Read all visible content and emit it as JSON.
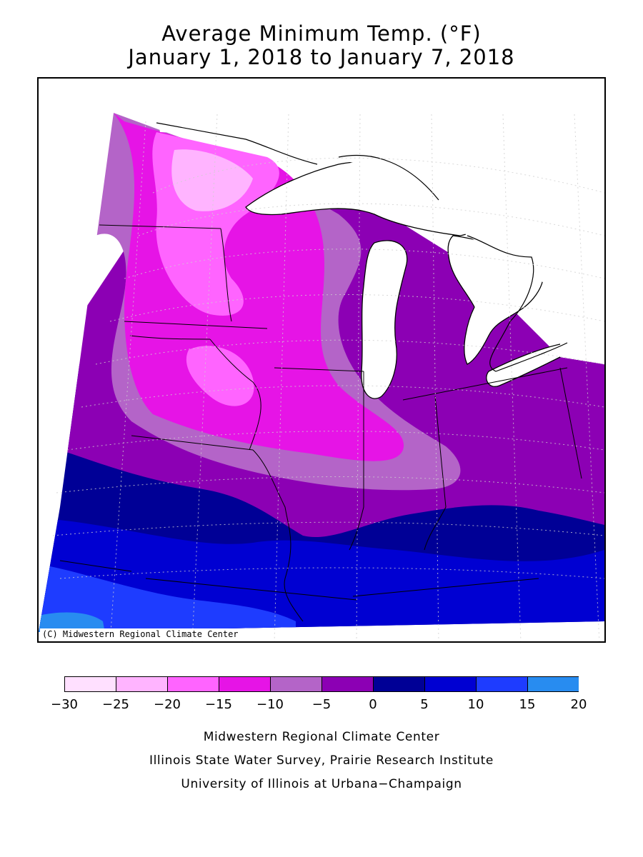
{
  "title": {
    "line1": "Average Minimum Temp. (°F)",
    "line2": "January 1, 2018 to January 7, 2018"
  },
  "map": {
    "copyright": "(C) Midwestern Regional Climate Center"
  },
  "legend": {
    "bins": [
      {
        "min": -30,
        "max": -25,
        "color": "#ffe0ff"
      },
      {
        "min": -25,
        "max": -20,
        "color": "#ffb4ff"
      },
      {
        "min": -20,
        "max": -15,
        "color": "#ff64ff"
      },
      {
        "min": -15,
        "max": -10,
        "color": "#e614e6"
      },
      {
        "min": -10,
        "max": -5,
        "color": "#b464c8"
      },
      {
        "min": -5,
        "max": 0,
        "color": "#8c00b4"
      },
      {
        "min": 0,
        "max": 5,
        "color": "#000096"
      },
      {
        "min": 5,
        "max": 10,
        "color": "#0000d2"
      },
      {
        "min": 10,
        "max": 15,
        "color": "#1e3cff"
      },
      {
        "min": 15,
        "max": 20,
        "color": "#288cf0"
      }
    ],
    "tick_labels": [
      "−30",
      "−25",
      "−20",
      "−15",
      "−10",
      "−5",
      "0",
      "5",
      "10",
      "15",
      "20"
    ]
  },
  "credits": {
    "line1": "Midwestern Regional Climate Center",
    "line2": "Illinois State Water Survey, Prairie Research Institute",
    "line3": "University of Illinois at Urbana−Champaign"
  }
}
